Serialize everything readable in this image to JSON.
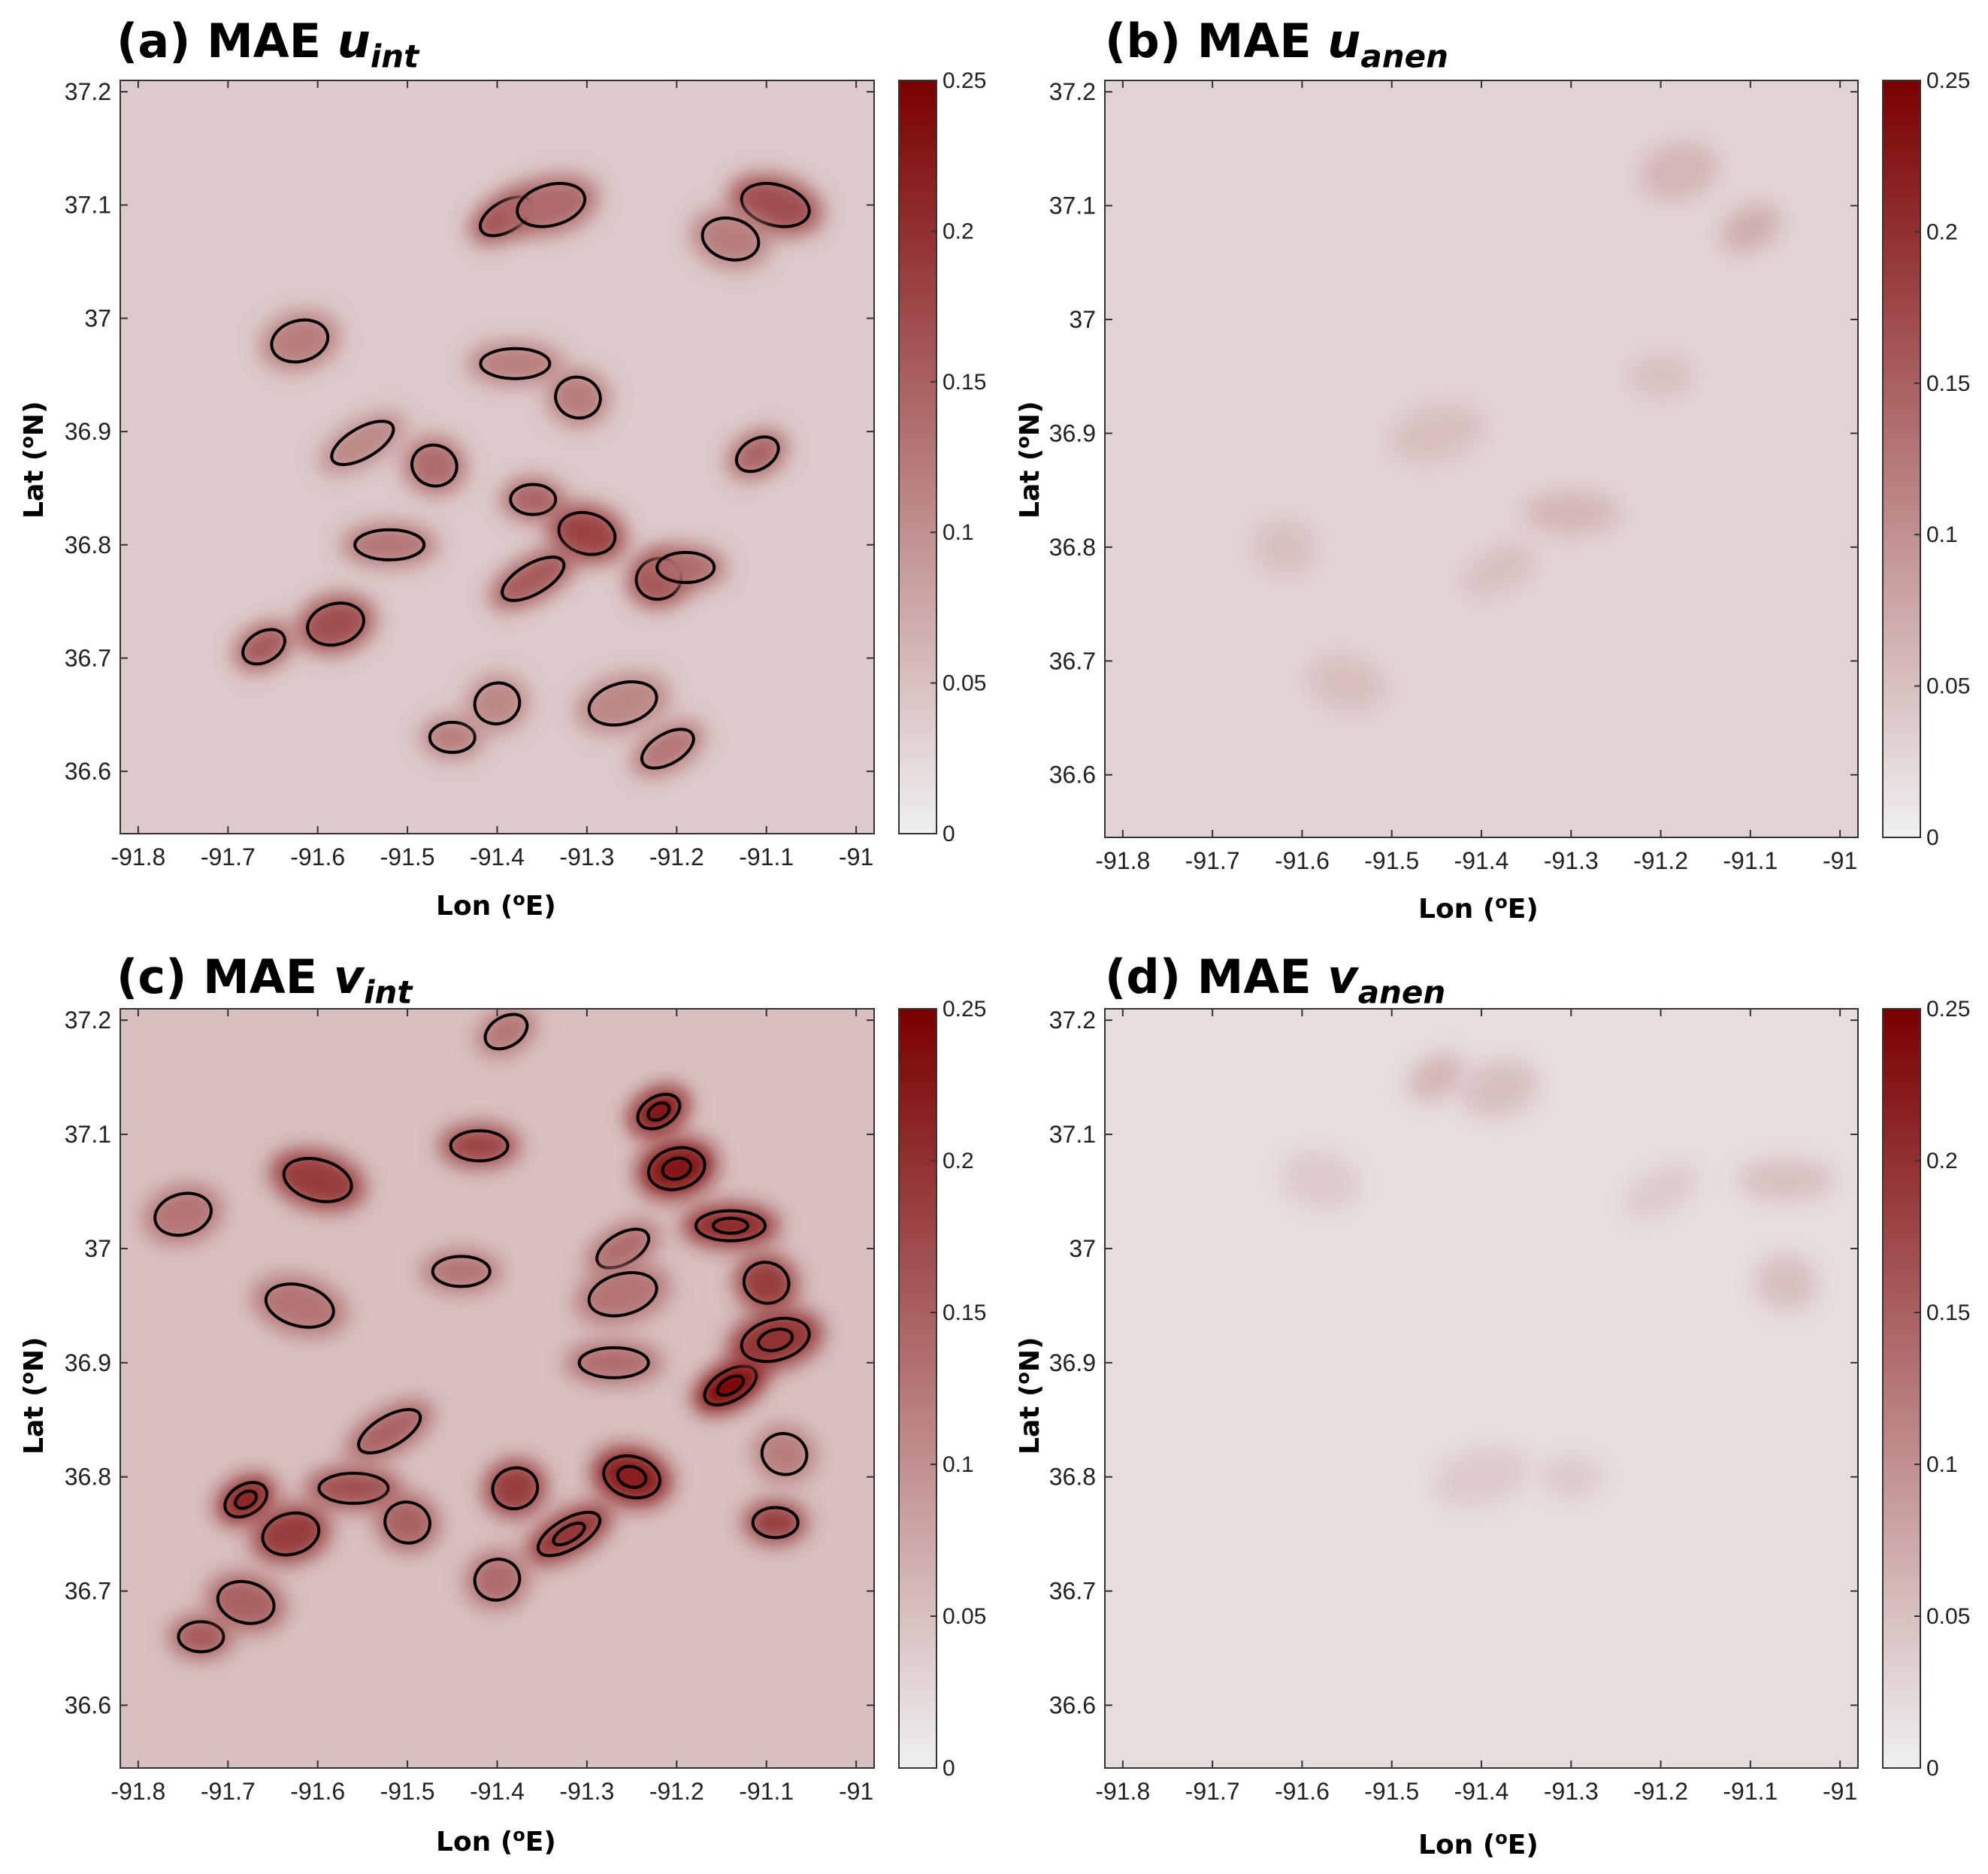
{
  "figure": {
    "panels": [
      {
        "id": "a",
        "prefix": "(a) MAE ",
        "var": "u",
        "sub": "int",
        "contours": true
      },
      {
        "id": "b",
        "prefix": "(b) MAE ",
        "var": "u",
        "sub": "anen",
        "contours": false
      },
      {
        "id": "c",
        "prefix": "(c) MAE ",
        "var": "v",
        "sub": "int",
        "contours": true
      },
      {
        "id": "d",
        "prefix": "(d) MAE ",
        "var": "v",
        "sub": "anen",
        "contours": false
      }
    ],
    "xlabel_main": "Lon (",
    "xlabel_sup": "o",
    "xlabel_end": "E)",
    "ylabel_main": "Lat (",
    "ylabel_sup": "o",
    "ylabel_end": "N)"
  },
  "chart_data": [
    {
      "type": "heatmap",
      "title": "(a) MAE u_int",
      "xlabel": "Lon (oE)",
      "ylabel": "Lat (oN)",
      "x_ticks": [
        "-91.8",
        "-91.7",
        "-91.6",
        "-91.5",
        "-91.4",
        "-91.3",
        "-91.2",
        "-91.1",
        "-91"
      ],
      "y_ticks": [
        "36.6",
        "36.7",
        "36.8",
        "36.9",
        "37",
        "37.1",
        "37.2"
      ],
      "xlim": [
        -91.82,
        -90.98
      ],
      "ylim": [
        36.545,
        37.21
      ],
      "colorbar": {
        "min": 0,
        "max": 0.25,
        "ticks": [
          "0",
          "0.05",
          "0.1",
          "0.15",
          "0.2",
          "0.25"
        ],
        "low_color": "#f0f0f0",
        "high_color": "#7a0000"
      },
      "contour_levels": [
        0.1
      ],
      "background_level": 0.04,
      "hotspots": [
        {
          "lon": -91.66,
          "lat": 36.71,
          "v": 0.16
        },
        {
          "lon": -91.58,
          "lat": 36.73,
          "v": 0.17
        },
        {
          "lon": -91.52,
          "lat": 36.8,
          "v": 0.13
        },
        {
          "lon": -91.47,
          "lat": 36.87,
          "v": 0.14
        },
        {
          "lon": -91.39,
          "lat": 37.09,
          "v": 0.17
        },
        {
          "lon": -91.34,
          "lat": 37.1,
          "v": 0.14
        },
        {
          "lon": -91.36,
          "lat": 36.84,
          "v": 0.15
        },
        {
          "lon": -91.3,
          "lat": 36.81,
          "v": 0.18
        },
        {
          "lon": -91.36,
          "lat": 36.77,
          "v": 0.16
        },
        {
          "lon": -91.22,
          "lat": 36.77,
          "v": 0.17
        },
        {
          "lon": -91.19,
          "lat": 36.78,
          "v": 0.14
        },
        {
          "lon": -91.09,
          "lat": 37.1,
          "v": 0.17
        },
        {
          "lon": -91.11,
          "lat": 36.88,
          "v": 0.15
        },
        {
          "lon": -91.62,
          "lat": 36.98,
          "v": 0.12
        },
        {
          "lon": -91.38,
          "lat": 36.96,
          "v": 0.12
        },
        {
          "lon": -91.31,
          "lat": 36.93,
          "v": 0.12
        },
        {
          "lon": -91.21,
          "lat": 36.62,
          "v": 0.13
        },
        {
          "lon": -91.26,
          "lat": 36.66,
          "v": 0.11
        },
        {
          "lon": -91.45,
          "lat": 36.63,
          "v": 0.12
        },
        {
          "lon": -91.14,
          "lat": 37.07,
          "v": 0.12
        },
        {
          "lon": -91.55,
          "lat": 36.89,
          "v": 0.11
        },
        {
          "lon": -91.4,
          "lat": 36.66,
          "v": 0.11
        }
      ]
    },
    {
      "type": "heatmap",
      "title": "(b) MAE u_anen",
      "xlabel": "Lon (oE)",
      "ylabel": "Lat (oN)",
      "x_ticks": [
        "-91.8",
        "-91.7",
        "-91.6",
        "-91.5",
        "-91.4",
        "-91.3",
        "-91.2",
        "-91.1",
        "-91"
      ],
      "y_ticks": [
        "36.6",
        "36.7",
        "36.8",
        "36.9",
        "37",
        "37.1",
        "37.2"
      ],
      "xlim": [
        -91.82,
        -90.98
      ],
      "ylim": [
        36.545,
        37.21
      ],
      "colorbar": {
        "min": 0,
        "max": 0.25,
        "ticks": [
          "0",
          "0.05",
          "0.1",
          "0.15",
          "0.2",
          "0.25"
        ],
        "low_color": "#f0f0f0",
        "high_color": "#7a0000"
      },
      "contour_levels": [],
      "background_level": 0.03,
      "hotspots": [
        {
          "lon": -91.1,
          "lat": 37.08,
          "v": 0.07
        },
        {
          "lon": -91.18,
          "lat": 37.13,
          "v": 0.06
        },
        {
          "lon": -91.3,
          "lat": 36.83,
          "v": 0.06
        },
        {
          "lon": -91.62,
          "lat": 36.8,
          "v": 0.05
        },
        {
          "lon": -91.38,
          "lat": 36.78,
          "v": 0.05
        },
        {
          "lon": -91.45,
          "lat": 36.9,
          "v": 0.05
        },
        {
          "lon": -91.2,
          "lat": 36.95,
          "v": 0.05
        },
        {
          "lon": -91.55,
          "lat": 36.68,
          "v": 0.05
        }
      ]
    },
    {
      "type": "heatmap",
      "title": "(c) MAE v_int",
      "xlabel": "Lon (oE)",
      "ylabel": "Lat (oN)",
      "x_ticks": [
        "-91.8",
        "-91.7",
        "-91.6",
        "-91.5",
        "-91.4",
        "-91.3",
        "-91.2",
        "-91.1",
        "-91"
      ],
      "y_ticks": [
        "36.6",
        "36.7",
        "36.8",
        "36.9",
        "37",
        "37.1",
        "37.2"
      ],
      "xlim": [
        -91.82,
        -90.98
      ],
      "ylim": [
        36.545,
        37.21
      ],
      "colorbar": {
        "min": 0,
        "max": 0.25,
        "ticks": [
          "0",
          "0.05",
          "0.1",
          "0.15",
          "0.2",
          "0.25"
        ],
        "low_color": "#f0f0f0",
        "high_color": "#7a0000"
      },
      "contour_levels": [
        0.1,
        0.2
      ],
      "background_level": 0.05,
      "hotspots": [
        {
          "lon": -91.22,
          "lat": 37.12,
          "v": 0.24
        },
        {
          "lon": -91.2,
          "lat": 37.07,
          "v": 0.23
        },
        {
          "lon": -91.14,
          "lat": 37.02,
          "v": 0.21
        },
        {
          "lon": -91.1,
          "lat": 36.97,
          "v": 0.19
        },
        {
          "lon": -91.14,
          "lat": 36.88,
          "v": 0.25
        },
        {
          "lon": -91.09,
          "lat": 36.92,
          "v": 0.2
        },
        {
          "lon": -91.09,
          "lat": 36.76,
          "v": 0.19
        },
        {
          "lon": -91.25,
          "lat": 36.8,
          "v": 0.22
        },
        {
          "lon": -91.32,
          "lat": 36.75,
          "v": 0.2
        },
        {
          "lon": -91.38,
          "lat": 36.79,
          "v": 0.19
        },
        {
          "lon": -91.42,
          "lat": 37.09,
          "v": 0.18
        },
        {
          "lon": -91.6,
          "lat": 37.06,
          "v": 0.19
        },
        {
          "lon": -91.68,
          "lat": 36.78,
          "v": 0.22
        },
        {
          "lon": -91.63,
          "lat": 36.75,
          "v": 0.19
        },
        {
          "lon": -91.56,
          "lat": 36.79,
          "v": 0.17
        },
        {
          "lon": -91.5,
          "lat": 36.76,
          "v": 0.15
        },
        {
          "lon": -91.26,
          "lat": 37.0,
          "v": 0.14
        },
        {
          "lon": -91.26,
          "lat": 36.96,
          "v": 0.13
        },
        {
          "lon": -91.73,
          "lat": 36.66,
          "v": 0.16
        },
        {
          "lon": -91.68,
          "lat": 36.69,
          "v": 0.15
        },
        {
          "lon": -91.52,
          "lat": 36.84,
          "v": 0.15
        },
        {
          "lon": -91.4,
          "lat": 36.71,
          "v": 0.14
        },
        {
          "lon": -91.44,
          "lat": 36.98,
          "v": 0.13
        },
        {
          "lon": -91.62,
          "lat": 36.95,
          "v": 0.13
        },
        {
          "lon": -91.39,
          "lat": 37.19,
          "v": 0.13
        },
        {
          "lon": -91.75,
          "lat": 37.03,
          "v": 0.13
        },
        {
          "lon": -91.27,
          "lat": 36.9,
          "v": 0.14
        },
        {
          "lon": -91.08,
          "lat": 36.82,
          "v": 0.12
        }
      ]
    },
    {
      "type": "heatmap",
      "title": "(d) MAE v_anen",
      "xlabel": "Lon (oE)",
      "ylabel": "Lat (oN)",
      "x_ticks": [
        "-91.8",
        "-91.7",
        "-91.6",
        "-91.5",
        "-91.4",
        "-91.3",
        "-91.2",
        "-91.1",
        "-91"
      ],
      "y_ticks": [
        "36.6",
        "36.7",
        "36.8",
        "36.9",
        "37",
        "37.1",
        "37.2"
      ],
      "xlim": [
        -91.82,
        -90.98
      ],
      "ylim": [
        36.545,
        37.21
      ],
      "colorbar": {
        "min": 0,
        "max": 0.25,
        "ticks": [
          "0",
          "0.05",
          "0.1",
          "0.15",
          "0.2",
          "0.25"
        ],
        "low_color": "#f0f0f0",
        "high_color": "#7a0000"
      },
      "contour_levels": [],
      "background_level": 0.02,
      "hotspots": [
        {
          "lon": -91.45,
          "lat": 37.15,
          "v": 0.06
        },
        {
          "lon": -91.38,
          "lat": 37.14,
          "v": 0.05
        },
        {
          "lon": -91.06,
          "lat": 37.06,
          "v": 0.05
        },
        {
          "lon": -91.06,
          "lat": 36.97,
          "v": 0.05
        },
        {
          "lon": -91.2,
          "lat": 37.05,
          "v": 0.04
        },
        {
          "lon": -91.4,
          "lat": 36.8,
          "v": 0.04
        },
        {
          "lon": -91.3,
          "lat": 36.8,
          "v": 0.04
        },
        {
          "lon": -91.58,
          "lat": 37.06,
          "v": 0.04
        }
      ]
    }
  ]
}
